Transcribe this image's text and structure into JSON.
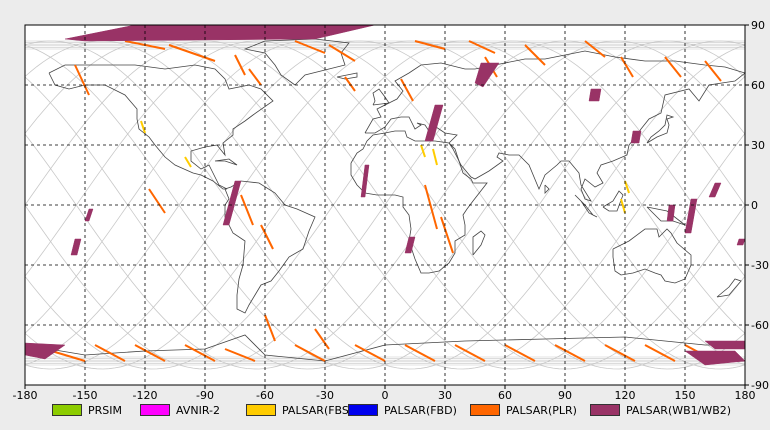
{
  "map": {
    "lon_ticks": [
      -180,
      -150,
      -120,
      -90,
      -60,
      -30,
      0,
      30,
      60,
      90,
      120,
      150,
      180
    ],
    "lat_ticks": [
      90,
      60,
      30,
      0,
      -30,
      -60,
      -90
    ],
    "lon_labels": [
      "-180",
      "-150",
      "-120",
      "-90",
      "-60",
      "-30",
      "0",
      "30",
      "60",
      "90",
      "120",
      "150",
      "180"
    ],
    "lat_labels": [
      "90",
      "60",
      "30",
      "0",
      "-30",
      "-60",
      "-90"
    ],
    "colors": {
      "background": "#ffffff",
      "coastline": "#444444",
      "orbit_track": "#c8c8c8",
      "grid": "#000000"
    },
    "scenes_plr": [
      [
        -155,
        70,
        -148,
        55
      ],
      [
        -130,
        82,
        -110,
        78
      ],
      [
        -108,
        80,
        -85,
        72
      ],
      [
        -75,
        75,
        -70,
        65
      ],
      [
        -68,
        68,
        -62,
        60
      ],
      [
        -45,
        82,
        -30,
        76
      ],
      [
        -28,
        80,
        -15,
        72
      ],
      [
        -20,
        64,
        -15,
        57
      ],
      [
        8,
        63,
        14,
        52
      ],
      [
        15,
        82,
        30,
        78
      ],
      [
        42,
        82,
        55,
        76
      ],
      [
        50,
        74,
        56,
        64
      ],
      [
        70,
        80,
        80,
        70
      ],
      [
        100,
        82,
        110,
        74
      ],
      [
        118,
        74,
        124,
        64
      ],
      [
        140,
        74,
        148,
        64
      ],
      [
        160,
        72,
        168,
        62
      ],
      [
        -118,
        8,
        -110,
        -4
      ],
      [
        -72,
        5,
        -66,
        -10
      ],
      [
        -62,
        -10,
        -56,
        -22
      ],
      [
        -60,
        -55,
        -55,
        -68
      ],
      [
        -35,
        -62,
        -28,
        -72
      ],
      [
        20,
        10,
        26,
        -12
      ],
      [
        28,
        -6,
        34,
        -24
      ],
      [
        -170,
        -72,
        -150,
        -78
      ],
      [
        -145,
        -70,
        -130,
        -78
      ],
      [
        -125,
        -70,
        -110,
        -78
      ],
      [
        -100,
        -70,
        -85,
        -78
      ],
      [
        -80,
        -72,
        -65,
        -78
      ],
      [
        -45,
        -70,
        -30,
        -78
      ],
      [
        -15,
        -70,
        0,
        -78
      ],
      [
        10,
        -70,
        25,
        -78
      ],
      [
        35,
        -70,
        50,
        -78
      ],
      [
        60,
        -70,
        75,
        -78
      ],
      [
        85,
        -70,
        100,
        -78
      ],
      [
        110,
        -70,
        125,
        -78
      ],
      [
        130,
        -70,
        145,
        -78
      ],
      [
        150,
        -70,
        165,
        -78
      ]
    ],
    "scenes_fbs": [
      [
        -122,
        42,
        -120,
        36
      ],
      [
        -100,
        24,
        -97,
        19
      ],
      [
        18,
        30,
        20,
        24
      ],
      [
        24,
        28,
        26,
        20
      ],
      [
        118,
        3,
        120,
        -4
      ],
      [
        120,
        12,
        122,
        6
      ]
    ],
    "scenes_wb": [
      [
        [
          -160,
          83
        ],
        [
          -125,
          90
        ],
        [
          -5,
          90
        ],
        [
          -35,
          83
        ],
        [
          -150,
          82
        ]
      ],
      [
        [
          48,
          71
        ],
        [
          57,
          71
        ],
        [
          49,
          59
        ],
        [
          45,
          61
        ]
      ],
      [
        [
          103,
          58
        ],
        [
          108,
          58
        ],
        [
          107,
          52
        ],
        [
          102,
          52
        ]
      ],
      [
        [
          25,
          50
        ],
        [
          29,
          50
        ],
        [
          24,
          32
        ],
        [
          20,
          32
        ]
      ],
      [
        [
          -10,
          20
        ],
        [
          -8,
          20
        ],
        [
          -10,
          4
        ],
        [
          -12,
          4
        ]
      ],
      [
        [
          -75,
          12
        ],
        [
          -72,
          12
        ],
        [
          -78,
          -10
        ],
        [
          -81,
          -10
        ]
      ],
      [
        [
          12,
          -16
        ],
        [
          15,
          -16
        ],
        [
          13,
          -24
        ],
        [
          10,
          -24
        ]
      ],
      [
        [
          -148,
          -2
        ],
        [
          -146,
          -2
        ],
        [
          -148,
          -8
        ],
        [
          -150,
          -8
        ]
      ],
      [
        [
          -155,
          -17
        ],
        [
          -152,
          -17
        ],
        [
          -154,
          -25
        ],
        [
          -157,
          -25
        ]
      ],
      [
        [
          165,
          11
        ],
        [
          168,
          11
        ],
        [
          165,
          4
        ],
        [
          162,
          4
        ]
      ],
      [
        [
          153,
          3
        ],
        [
          156,
          3
        ],
        [
          153,
          -14
        ],
        [
          150,
          -14
        ]
      ],
      [
        [
          142,
          0
        ],
        [
          145,
          0
        ],
        [
          144,
          -8
        ],
        [
          141,
          -8
        ]
      ],
      [
        [
          124,
          37
        ],
        [
          128,
          37
        ],
        [
          127,
          31
        ],
        [
          123,
          31
        ]
      ],
      [
        [
          177,
          -17
        ],
        [
          180,
          -17
        ],
        [
          179,
          -20
        ],
        [
          176,
          -20
        ]
      ],
      [
        [
          -180,
          -69
        ],
        [
          -160,
          -70
        ],
        [
          -170,
          -77
        ],
        [
          -180,
          -75
        ]
      ],
      [
        [
          150,
          -73
        ],
        [
          175,
          -73
        ],
        [
          180,
          -78
        ],
        [
          160,
          -80
        ]
      ],
      [
        [
          160,
          -68
        ],
        [
          180,
          -68
        ],
        [
          180,
          -72
        ],
        [
          165,
          -72
        ]
      ]
    ]
  },
  "legend": {
    "items": [
      {
        "label": "PRSIM",
        "color": "#8ccc00"
      },
      {
        "label": "AVNIR-2",
        "color": "#ff00ff"
      },
      {
        "label": "PALSAR(FBS)",
        "color": "#ffcc00"
      },
      {
        "label": "PALSAR(FBD)",
        "color": "#0000ee"
      },
      {
        "label": "PALSAR(PLR)",
        "color": "#ff6600"
      },
      {
        "label": "PALSAR(WB1/WB2)",
        "color": "#993366"
      }
    ]
  }
}
